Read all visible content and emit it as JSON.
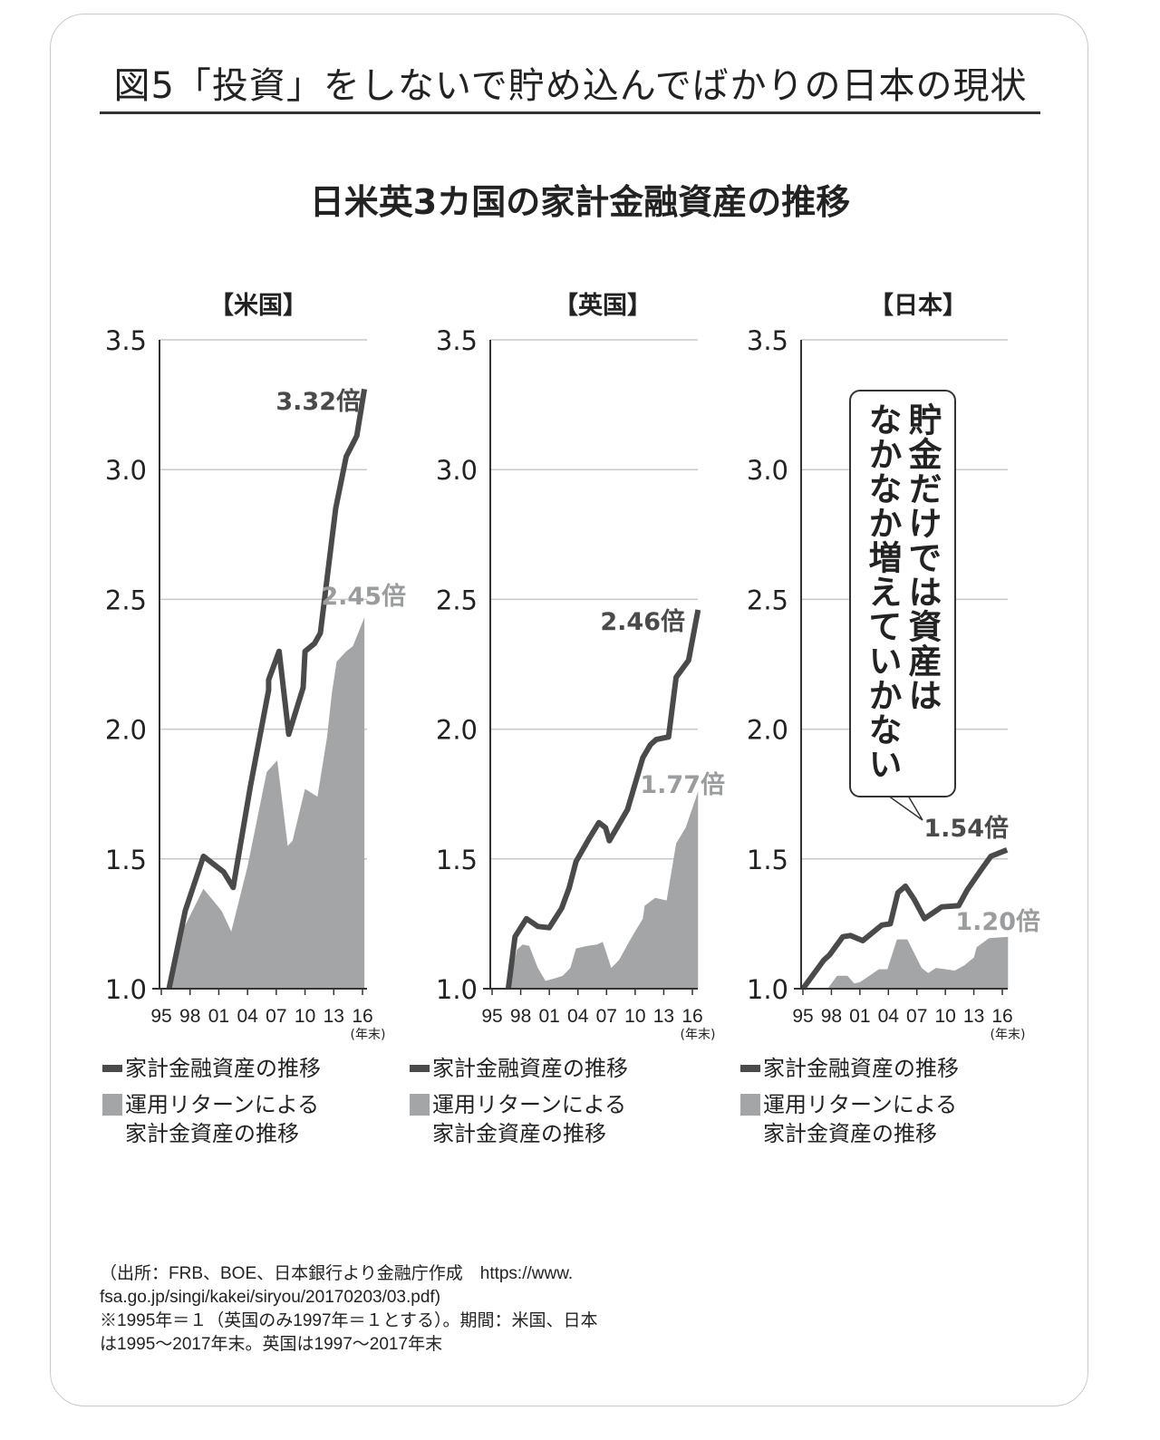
{
  "figure_title": "図5「投資」をしないで貯め込んでばかりの日本の現状",
  "subtitle": "日米英3カ国の家計金融資産の推移",
  "callout": {
    "line1": "貯金だけでは資産は",
    "line2": "なかなか増えていかない"
  },
  "legend": {
    "line_label": "家計金融資産の推移",
    "area_label_1": "運用リターンによる",
    "area_label_2": "家計金資産の推移"
  },
  "source": [
    "（出所：FRB、BOE、日本銀行より金融庁作成　https://www.",
    "fsa.go.jp/singi/kakei/siryou/20170203/03.pdf)",
    "※1995年＝１（英国のみ1997年＝１とする）。期間：米国、日本",
    "は1995～2017年末。英国は1997～2017年末"
  ],
  "colors": {
    "line": "#4a4a4a",
    "area": "#a3a5a6",
    "grid": "#c8c8c8",
    "label_area": "#9a9c9d"
  },
  "chart_data": [
    {
      "type": "line+area",
      "title": "【米国】",
      "ylim": [
        1.0,
        3.5
      ],
      "yticks": [
        "1.0",
        "1.5",
        "2.0",
        "2.5",
        "3.0",
        "3.5"
      ],
      "xticks": [
        "95",
        "98",
        "01",
        "04",
        "07",
        "10",
        "13",
        "16"
      ],
      "xunit": "(年末)",
      "series": [
        {
          "name": "家計金融資産の推移",
          "kind": "line",
          "end_label": "3.32倍",
          "x": [
            1995.8,
            1997.5,
            1999.4,
            2001.5,
            2002.5,
            2004.3,
            2006.2,
            2006.2,
            2007.3,
            2008.3,
            2009.8,
            2010.0,
            2011.0,
            2011.6,
            2013.2,
            2014.3,
            2015.4,
            2016.2
          ],
          "y": [
            1.0,
            1.3,
            1.51,
            1.45,
            1.39,
            1.78,
            2.15,
            2.19,
            2.3,
            1.98,
            2.16,
            2.3,
            2.33,
            2.37,
            2.85,
            3.05,
            3.13,
            3.31
          ]
        },
        {
          "name": "運用リターンによる家計金資産の推移",
          "kind": "area",
          "end_label": "2.45倍",
          "x": [
            1995.8,
            1997.3,
            1999.4,
            2001.3,
            2002.3,
            2004.0,
            2006.0,
            2007.1,
            2008.2,
            2008.7,
            2010.0,
            2011.3,
            2012.3,
            2012.8,
            2013.3,
            2014.3,
            2015.0,
            2016.2
          ],
          "y": [
            1.0,
            1.23,
            1.385,
            1.3,
            1.22,
            1.47,
            1.835,
            1.88,
            1.55,
            1.57,
            1.77,
            1.74,
            1.97,
            2.14,
            2.26,
            2.3,
            2.32,
            2.43
          ]
        }
      ]
    },
    {
      "type": "line+area",
      "title": "【英国】",
      "ylim": [
        1.0,
        3.5
      ],
      "yticks": [
        "1.0",
        "1.5",
        "2.0",
        "2.5",
        "3.0",
        "3.5"
      ],
      "xticks": [
        "95",
        "98",
        "01",
        "04",
        "07",
        "10",
        "13",
        "16"
      ],
      "xunit": "(年末)",
      "series": [
        {
          "name": "家計金融資産の推移",
          "kind": "line",
          "end_label": "2.46倍",
          "x": [
            1996.7,
            1997.4,
            1998.6,
            1999.8,
            2001.0,
            2002.3,
            2003.1,
            2003.8,
            2005.2,
            2006.2,
            2006.9,
            2007.3,
            2009.2,
            2010.8,
            2011.6,
            2012.2,
            2013.5,
            2014.3,
            2015.6,
            2016.6
          ],
          "y": [
            1.0,
            1.2,
            1.27,
            1.24,
            1.235,
            1.31,
            1.39,
            1.49,
            1.58,
            1.64,
            1.62,
            1.57,
            1.69,
            1.89,
            1.94,
            1.96,
            1.97,
            2.2,
            2.265,
            2.46
          ]
        },
        {
          "name": "運用リターンによる家計金資産の推移",
          "kind": "area",
          "end_label": "1.77倍",
          "x": [
            1996.7,
            1997.6,
            1998.2,
            1998.9,
            1999.8,
            2000.6,
            2001.6,
            2002.4,
            2003.2,
            2003.8,
            2005.0,
            2006.0,
            2006.6,
            2007.5,
            2008.3,
            2009.5,
            2010.8,
            2011.0,
            2012.1,
            2013.3,
            2014.3,
            2015.3,
            2016.6
          ],
          "y": [
            1.0,
            1.15,
            1.17,
            1.165,
            1.08,
            1.03,
            1.04,
            1.05,
            1.08,
            1.155,
            1.165,
            1.17,
            1.18,
            1.08,
            1.11,
            1.19,
            1.27,
            1.32,
            1.35,
            1.34,
            1.56,
            1.62,
            1.76
          ]
        }
      ]
    },
    {
      "type": "line+area",
      "title": "【日本】",
      "ylim": [
        1.0,
        3.5
      ],
      "yticks": [
        "1.0",
        "1.5",
        "2.0",
        "2.5",
        "3.0",
        "3.5"
      ],
      "xticks": [
        "95",
        "98",
        "01",
        "04",
        "07",
        "10",
        "13",
        "16"
      ],
      "xunit": "(年末)",
      "series": [
        {
          "name": "家計金融資産の推移",
          "kind": "line",
          "end_label": "1.54倍",
          "x": [
            1995.0,
            1997.2,
            1997.8,
            1999.2,
            2000.0,
            2001.3,
            2002.3,
            2003.3,
            2004.2,
            2005.0,
            2005.8,
            2006.7,
            2007.8,
            2009.0,
            2009.6,
            2011.4,
            2012.3,
            2013.8,
            2014.8,
            2016.5
          ],
          "y": [
            1.0,
            1.11,
            1.13,
            1.2,
            1.205,
            1.185,
            1.215,
            1.245,
            1.25,
            1.37,
            1.395,
            1.345,
            1.27,
            1.3,
            1.315,
            1.32,
            1.38,
            1.46,
            1.51,
            1.535
          ]
        },
        {
          "name": "運用リターンによる家計金資産の推移",
          "kind": "area",
          "end_label": "1.20倍",
          "x": [
            1997.6,
            1998.6,
            1999.7,
            2000.4,
            2001.0,
            2002.0,
            2003.0,
            2003.9,
            2004.9,
            2006.0,
            2007.5,
            2008.2,
            2009.0,
            2010.0,
            2011.0,
            2012.0,
            2013.0,
            2013.3,
            2014.6,
            2016.6
          ],
          "y": [
            1.0,
            1.05,
            1.05,
            1.02,
            1.025,
            1.05,
            1.075,
            1.075,
            1.19,
            1.19,
            1.08,
            1.06,
            1.08,
            1.075,
            1.07,
            1.09,
            1.12,
            1.16,
            1.195,
            1.2
          ]
        }
      ]
    }
  ]
}
